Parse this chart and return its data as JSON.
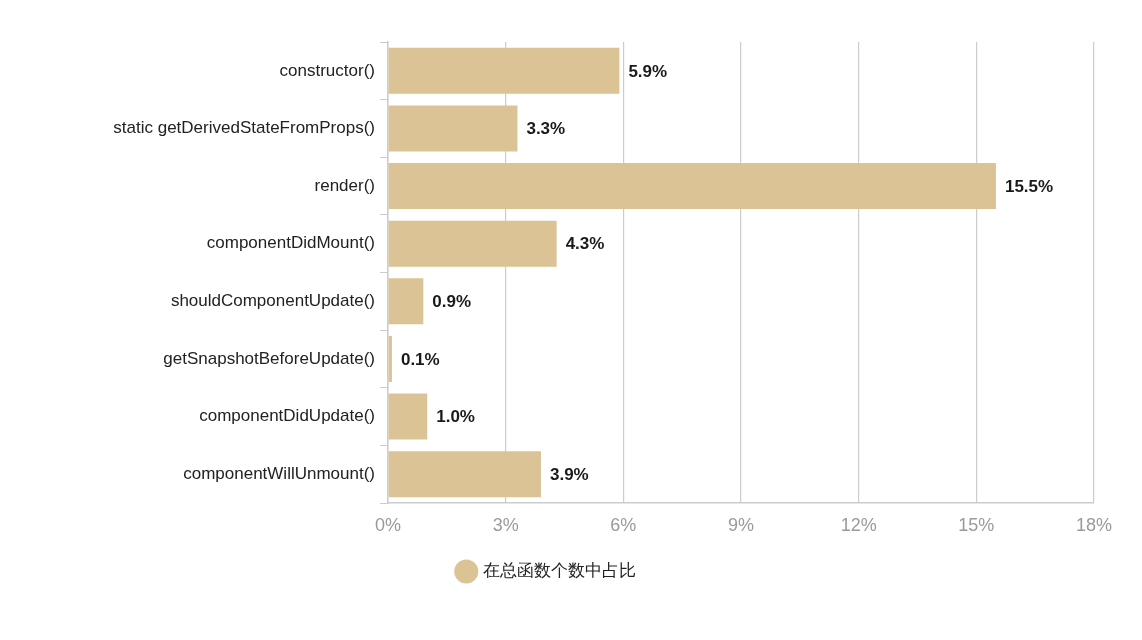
{
  "chart_data": {
    "type": "bar",
    "orientation": "horizontal",
    "categories": [
      "constructor()",
      "static getDerivedStateFromProps()",
      "render()",
      "componentDidMount()",
      "shouldComponentUpdate()",
      "getSnapshotBeforeUpdate()",
      "componentDidUpdate()",
      "componentWillUnmount()"
    ],
    "series": [
      {
        "name": "在总函数个数中占比",
        "color": "#dbc395",
        "values": [
          5.9,
          3.3,
          15.5,
          4.3,
          0.9,
          0.1,
          1.0,
          3.9
        ],
        "value_labels": [
          "5.9%",
          "3.3%",
          "15.5%",
          "4.3%",
          "0.9%",
          "0.1%",
          "1.0%",
          "3.9%"
        ]
      }
    ],
    "xlim": [
      0,
      18
    ],
    "xticks": [
      {
        "value": 0,
        "label": "0%"
      },
      {
        "value": 3,
        "label": "3%"
      },
      {
        "value": 6,
        "label": "6%"
      },
      {
        "value": 9,
        "label": "9%"
      },
      {
        "value": 12,
        "label": "12%"
      },
      {
        "value": 15,
        "label": "15%"
      },
      {
        "value": 18,
        "label": "18%"
      }
    ],
    "grid": "x",
    "legend": "bottom"
  }
}
